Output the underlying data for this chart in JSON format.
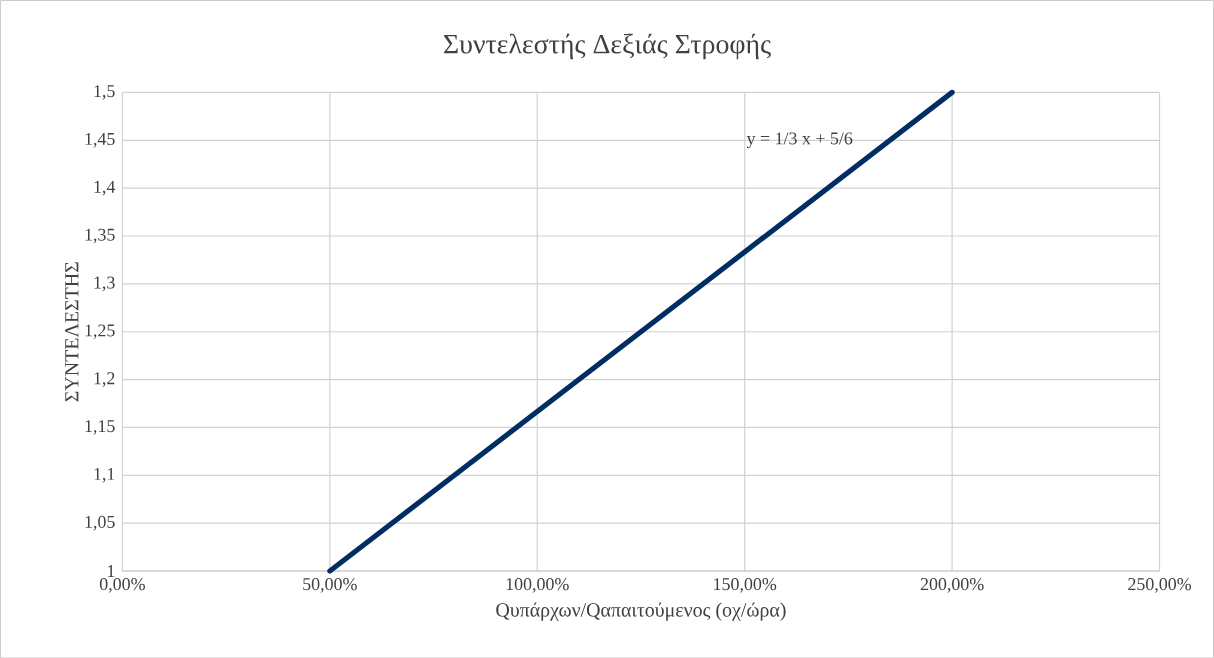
{
  "chart_data": {
    "type": "line",
    "title": "Συντελεστής Δεξιάς Στροφής",
    "xlabel": "Qυπάρχων/Qαπαιτούμενος (οχ/ώρα)",
    "ylabel": "ΣΥΝΤΕΛΕΣΤΗΣ",
    "annotations": [
      "y = 1/3 x + 5/6"
    ],
    "x": [
      50,
      200
    ],
    "series": [
      {
        "color": "#002d62",
        "values": [
          1,
          1.5
        ]
      }
    ],
    "xlim": [
      0,
      250
    ],
    "xticks": [
      {
        "value": 0,
        "label": "0,00%"
      },
      {
        "value": 50,
        "label": "50,00%"
      },
      {
        "value": 100,
        "label": "100,00%"
      },
      {
        "value": 150,
        "label": "150,00%"
      },
      {
        "value": 200,
        "label": "200,00%"
      },
      {
        "value": 250,
        "label": "250,00%"
      }
    ],
    "ylim": [
      1,
      1.5
    ],
    "yticks": [
      1,
      {
        "value": 1.05,
        "label": "1,05"
      },
      {
        "value": 1.1,
        "label": "1,1"
      },
      {
        "value": 1.15,
        "label": "1,15"
      },
      {
        "value": 1.2,
        "label": "1,2"
      },
      {
        "value": 1.25,
        "label": "1,25"
      },
      {
        "value": 1.3,
        "label": "1,3"
      },
      {
        "value": 1.35,
        "label": "1,35"
      },
      {
        "value": 1.4,
        "label": "1,4"
      },
      {
        "value": 1.45,
        "label": "1,45"
      },
      {
        "value": 1.5,
        "label": "1,5"
      }
    ],
    "grid": true
  }
}
